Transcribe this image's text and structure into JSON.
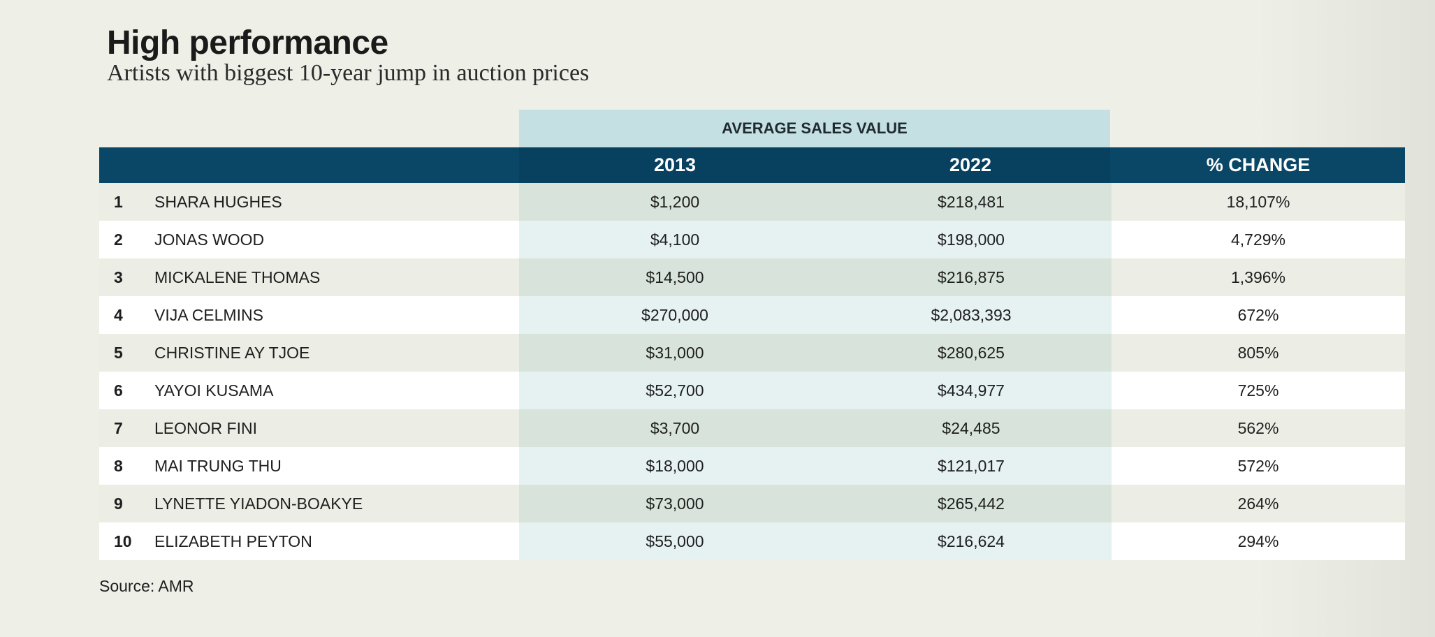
{
  "title": "High performance",
  "subtitle": "Artists with biggest 10-year jump in auction prices",
  "source": "Source: AMR",
  "colors": {
    "background": "#eef0e8",
    "header_bar": "#0a4665",
    "group_band": "#c5e0e3",
    "band_odd": "#d8e4db",
    "band_even": "#e6f1f2"
  },
  "chart_data": {
    "type": "table",
    "title": "High performance",
    "subtitle": "Artists with biggest 10-year jump in auction prices",
    "column_group": "AVERAGE SALES VALUE",
    "columns": [
      "",
      "",
      "2013",
      "2022",
      "% CHANGE"
    ],
    "rows": [
      {
        "rank": "1",
        "name": "SHARA HUGHES",
        "v2013": "$1,200",
        "v2022": "$218,481",
        "change": "18,107%"
      },
      {
        "rank": "2",
        "name": "JONAS WOOD",
        "v2013": "$4,100",
        "v2022": "$198,000",
        "change": "4,729%"
      },
      {
        "rank": "3",
        "name": "MICKALENE THOMAS",
        "v2013": "$14,500",
        "v2022": "$216,875",
        "change": "1,396%"
      },
      {
        "rank": "4",
        "name": "VIJA CELMINS",
        "v2013": "$270,000",
        "v2022": "$2,083,393",
        "change": "672%"
      },
      {
        "rank": "5",
        "name": "CHRISTINE AY TJOE",
        "v2013": "$31,000",
        "v2022": "$280,625",
        "change": "805%"
      },
      {
        "rank": "6",
        "name": "YAYOI KUSAMA",
        "v2013": "$52,700",
        "v2022": "$434,977",
        "change": "725%"
      },
      {
        "rank": "7",
        "name": "LEONOR FINI",
        "v2013": "$3,700",
        "v2022": "$24,485",
        "change": "562%"
      },
      {
        "rank": "8",
        "name": "MAI TRUNG THU",
        "v2013": "$18,000",
        "v2022": "$121,017",
        "change": "572%"
      },
      {
        "rank": "9",
        "name": "LYNETTE YIADON-BOAKYE",
        "v2013": "$73,000",
        "v2022": "$265,442",
        "change": "264%"
      },
      {
        "rank": "10",
        "name": "ELIZABETH PEYTON",
        "v2013": "$55,000",
        "v2022": "$216,624",
        "change": "294%"
      }
    ]
  }
}
